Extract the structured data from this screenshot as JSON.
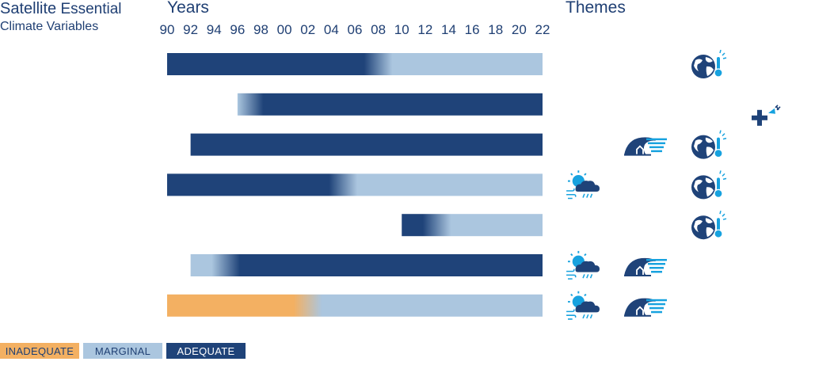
{
  "title": {
    "line1_big": "Satellite",
    "line1_rest": "Essential",
    "line2": "Climate Variables"
  },
  "years_label": "Years",
  "themes_label": "Themes",
  "colors": {
    "inadequate": "#f3b062",
    "marginal": "#abc6df",
    "adequate": "#1f4379",
    "theme_light": "#17a2df",
    "theme_dark": "#1f4379"
  },
  "legend": [
    {
      "key": "inadequate",
      "label": "INADEQUATE"
    },
    {
      "key": "marginal",
      "label": "MARGINAL"
    },
    {
      "key": "adequate",
      "label": "ADEQUATE"
    }
  ],
  "theme_icons": [
    "weather-icon",
    "coastal-hazard-icon",
    "climate-globe-icon",
    "health-icon"
  ],
  "chart_data": {
    "type": "bar",
    "xlim": [
      1990,
      2022
    ],
    "x_tick_labels": [
      "90",
      "92",
      "94",
      "96",
      "98",
      "00",
      "02",
      "04",
      "06",
      "08",
      "10",
      "12",
      "14",
      "16",
      "18",
      "20",
      "22"
    ],
    "rows": [
      {
        "start": 1990,
        "end": 2022,
        "segments": [
          {
            "from": 1990,
            "to": 2008,
            "status": "adequate"
          },
          {
            "from": 2008,
            "to": 2022,
            "status": "marginal"
          }
        ],
        "themes": [
          "climate-globe-icon"
        ]
      },
      {
        "start": 1996,
        "end": 2022,
        "segments": [
          {
            "from": 1996,
            "to": 1997,
            "status": "marginal"
          },
          {
            "from": 1997,
            "to": 2022,
            "status": "adequate"
          }
        ],
        "themes": [
          "health-icon"
        ]
      },
      {
        "start": 1992,
        "end": 2022,
        "segments": [
          {
            "from": 1992,
            "to": 2022,
            "status": "adequate"
          }
        ],
        "themes": [
          "coastal-hazard-icon",
          "climate-globe-icon"
        ]
      },
      {
        "start": 1990,
        "end": 2022,
        "segments": [
          {
            "from": 1990,
            "to": 2005,
            "status": "adequate"
          },
          {
            "from": 2005,
            "to": 2022,
            "status": "marginal"
          }
        ],
        "themes": [
          "weather-icon",
          "climate-globe-icon"
        ]
      },
      {
        "start": 2010,
        "end": 2022,
        "segments": [
          {
            "from": 2010,
            "to": 2013,
            "status": "adequate"
          },
          {
            "from": 2013,
            "to": 2022,
            "status": "marginal"
          }
        ],
        "themes": [
          "climate-globe-icon"
        ]
      },
      {
        "start": 1992,
        "end": 2022,
        "segments": [
          {
            "from": 1992,
            "to": 1995,
            "status": "marginal"
          },
          {
            "from": 1995,
            "to": 2022,
            "status": "adequate"
          }
        ],
        "themes": [
          "weather-icon",
          "coastal-hazard-icon"
        ]
      },
      {
        "start": 1990,
        "end": 2022,
        "segments": [
          {
            "from": 1990,
            "to": 2002,
            "status": "inadequate"
          },
          {
            "from": 2002,
            "to": 2022,
            "status": "marginal"
          }
        ],
        "themes": [
          "weather-icon",
          "coastal-hazard-icon"
        ]
      }
    ]
  }
}
